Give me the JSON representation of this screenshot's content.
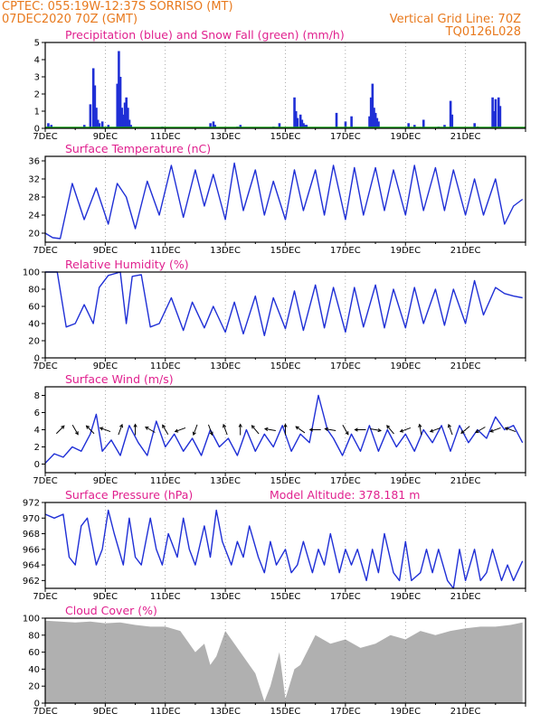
{
  "header": {
    "line1": "CPTEC:   055:19W-12:37S   SORRISO (MT)",
    "line2": "07DEC2020 70Z (GMT)",
    "grid_note": "Vertical Grid Line: 70Z",
    "code": "TQ0126L028"
  },
  "colors": {
    "header": "#e8791d",
    "panel_title": "#e0208e",
    "series": "#1f2fd6",
    "snow": "#11a011",
    "cloud": "#b0b0b0"
  },
  "chart_data": [
    {
      "type": "bar",
      "title": "Precipitation (blue) and Snow Fall (green) (mm/h)",
      "xlabel": "",
      "ylabel": "",
      "x_ticks": [
        "7DEC",
        "9DEC",
        "11DEC",
        "13DEC",
        "15DEC",
        "17DEC",
        "19DEC",
        "21DEC"
      ],
      "ylim": [
        0,
        5
      ],
      "y_ticks": [
        0,
        1,
        2,
        3,
        4,
        5
      ],
      "grid": "vertical dotted",
      "series": [
        {
          "name": "Precipitation",
          "x_days": [
            0.1,
            0.2,
            1.3,
            1.5,
            1.6,
            1.65,
            1.7,
            1.75,
            1.8,
            1.9,
            2.1,
            2.4,
            2.45,
            2.5,
            2.55,
            2.6,
            2.65,
            2.7,
            2.75,
            2.8,
            2.85,
            3.9,
            5.5,
            5.6,
            5.65,
            6.4,
            6.5,
            7.6,
            7.8,
            8.3,
            8.35,
            8.4,
            8.5,
            8.55,
            8.6,
            8.65,
            8.7,
            9.7,
            10.0,
            10.2,
            10.8,
            10.85,
            10.9,
            10.95,
            11.0,
            11.05,
            11.1,
            12.1,
            12.3,
            12.6,
            13.1,
            13.3,
            13.5,
            13.55,
            14.3,
            14.4,
            14.9,
            14.95,
            15.0,
            15.1,
            15.15
          ],
          "values": [
            0.3,
            0.2,
            0.2,
            1.4,
            3.5,
            2.5,
            1.2,
            0.5,
            0.3,
            0.4,
            0.2,
            2.6,
            4.5,
            3.0,
            1.2,
            0.8,
            1.5,
            1.8,
            1.2,
            0.5,
            0.2,
            0.1,
            0.3,
            0.4,
            0.2,
            0.1,
            0.2,
            0.1,
            0.3,
            1.8,
            1.0,
            0.6,
            0.8,
            0.5,
            0.3,
            0.2,
            0.2,
            0.9,
            0.4,
            0.7,
            0.7,
            1.8,
            2.6,
            1.2,
            0.9,
            0.6,
            0.4,
            0.3,
            0.2,
            0.5,
            0.1,
            0.2,
            1.6,
            0.8,
            0.3,
            0.1,
            1.8,
            1.0,
            1.7,
            1.8,
            1.3
          ]
        },
        {
          "name": "Snow Fall",
          "values": [
            0
          ]
        }
      ]
    },
    {
      "type": "line",
      "title": "Surface Temperature (nC)",
      "xlabel": "",
      "ylabel": "",
      "x_ticks": [
        "7DEC",
        "9DEC",
        "11DEC",
        "13DEC",
        "15DEC",
        "17DEC",
        "19DEC",
        "21DEC"
      ],
      "ylim": [
        18,
        37
      ],
      "y_ticks": [
        20,
        24,
        28,
        32,
        36
      ],
      "grid": "vertical dotted",
      "series": [
        {
          "x_days": [
            0,
            0.25,
            0.5,
            0.9,
            1.3,
            1.7,
            2.1,
            2.4,
            2.7,
            3.0,
            3.4,
            3.8,
            4.2,
            4.6,
            5.0,
            5.3,
            5.6,
            6.0,
            6.3,
            6.6,
            7.0,
            7.3,
            7.6,
            8.0,
            8.3,
            8.6,
            9.0,
            9.3,
            9.6,
            10.0,
            10.3,
            10.6,
            11.0,
            11.3,
            11.6,
            12.0,
            12.3,
            12.6,
            13.0,
            13.3,
            13.6,
            14.0,
            14.3,
            14.6,
            15.0,
            15.3,
            15.6,
            15.9
          ],
          "values": [
            20,
            19,
            18.8,
            31,
            23,
            30,
            22,
            31,
            28,
            21,
            31.5,
            24,
            35,
            23.5,
            34,
            26,
            33,
            23,
            35.5,
            25,
            34,
            24,
            31.5,
            23,
            34,
            25,
            34,
            24,
            35,
            23,
            34.5,
            24,
            34.5,
            25,
            34,
            24,
            35,
            25,
            34.5,
            25,
            34,
            24,
            32,
            24,
            32,
            22,
            26,
            27.5
          ]
        }
      ]
    },
    {
      "type": "line",
      "title": "Relative Humidity (%)",
      "xlabel": "",
      "ylabel": "",
      "x_ticks": [
        "7DEC",
        "9DEC",
        "11DEC",
        "13DEC",
        "15DEC",
        "17DEC",
        "19DEC",
        "21DEC"
      ],
      "ylim": [
        0,
        100
      ],
      "y_ticks": [
        0,
        20,
        40,
        60,
        80,
        100
      ],
      "grid": "vertical dotted",
      "series": [
        {
          "x_days": [
            0,
            0.4,
            0.7,
            1.0,
            1.3,
            1.6,
            1.8,
            2.1,
            2.5,
            2.7,
            2.9,
            3.2,
            3.5,
            3.8,
            4.2,
            4.6,
            4.9,
            5.3,
            5.6,
            6.0,
            6.3,
            6.6,
            7.0,
            7.3,
            7.6,
            8.0,
            8.3,
            8.6,
            9.0,
            9.3,
            9.6,
            10.0,
            10.3,
            10.6,
            11.0,
            11.3,
            11.6,
            12.0,
            12.3,
            12.6,
            13.0,
            13.3,
            13.6,
            14.0,
            14.3,
            14.6,
            15.0,
            15.3,
            15.6,
            15.9
          ],
          "values": [
            100,
            100,
            36,
            40,
            62,
            40,
            82,
            96,
            100,
            40,
            95,
            97,
            36,
            40,
            70,
            32,
            65,
            35,
            60,
            30,
            65,
            28,
            72,
            26,
            70,
            34,
            78,
            32,
            85,
            35,
            82,
            30,
            82,
            36,
            85,
            35,
            80,
            35,
            82,
            40,
            80,
            38,
            80,
            40,
            90,
            50,
            82,
            75,
            72,
            70
          ]
        }
      ]
    },
    {
      "type": "line",
      "title": "Surface Wind (m/s)",
      "xlabel": "",
      "ylabel": "",
      "x_ticks": [
        "7DEC",
        "9DEC",
        "11DEC",
        "13DEC",
        "15DEC",
        "17DEC",
        "19DEC",
        "21DEC"
      ],
      "ylim": [
        -1,
        9
      ],
      "y_ticks": [
        0,
        2,
        4,
        6,
        8
      ],
      "grid": "vertical dotted",
      "series": [
        {
          "x_days": [
            0,
            0.3,
            0.6,
            0.9,
            1.2,
            1.5,
            1.7,
            1.9,
            2.2,
            2.5,
            2.8,
            3.1,
            3.4,
            3.7,
            4.0,
            4.3,
            4.6,
            4.9,
            5.2,
            5.5,
            5.8,
            6.1,
            6.4,
            6.7,
            7.0,
            7.3,
            7.6,
            7.9,
            8.2,
            8.5,
            8.8,
            9.1,
            9.4,
            9.6,
            9.9,
            10.2,
            10.5,
            10.8,
            11.1,
            11.4,
            11.7,
            12.0,
            12.3,
            12.6,
            12.9,
            13.2,
            13.5,
            13.8,
            14.1,
            14.4,
            14.7,
            15.0,
            15.3,
            15.6,
            15.9
          ],
          "values": [
            0.1,
            1.2,
            0.8,
            2.0,
            1.5,
            3.5,
            5.8,
            1.5,
            2.8,
            1.0,
            4.5,
            2.5,
            1.0,
            5.0,
            2.0,
            3.5,
            1.5,
            3.0,
            1.0,
            4.0,
            2.0,
            3.0,
            1.0,
            4.0,
            1.5,
            3.5,
            2.0,
            4.5,
            1.5,
            3.5,
            2.5,
            8.0,
            4.0,
            3.0,
            1.0,
            3.5,
            1.5,
            4.5,
            1.5,
            4.0,
            2.0,
            3.5,
            1.5,
            4.0,
            2.5,
            4.5,
            1.5,
            4.5,
            2.5,
            4.0,
            3.0,
            5.5,
            4.0,
            4.5,
            2.5
          ]
        }
      ],
      "wind_arrow_days": [
        0.5,
        1.0,
        1.5,
        2.0,
        2.5,
        3.0,
        3.5,
        4.0,
        4.5,
        5.0,
        5.5,
        6.0,
        6.5,
        7.0,
        7.5,
        8.0,
        8.5,
        9.0,
        9.5,
        10.0,
        10.5,
        11.0,
        11.5,
        12.0,
        12.5,
        13.0,
        13.5,
        14.0,
        14.5,
        15.0,
        15.5
      ],
      "wind_arrow_directions_deg": [
        45,
        300,
        135,
        160,
        70,
        90,
        150,
        120,
        200,
        250,
        290,
        110,
        90,
        130,
        170,
        90,
        145,
        180,
        170,
        300,
        180,
        350,
        130,
        200,
        100,
        200,
        110,
        220,
        210,
        200,
        160
      ]
    },
    {
      "type": "line",
      "title": "Surface Pressure (hPa)",
      "annotation": "Model Altitude: 378.181 m",
      "xlabel": "",
      "ylabel": "",
      "x_ticks": [
        "7DEC",
        "9DEC",
        "11DEC",
        "13DEC",
        "15DEC",
        "17DEC",
        "19DEC",
        "21DEC"
      ],
      "ylim": [
        961,
        972
      ],
      "y_ticks": [
        962,
        964,
        966,
        968,
        970,
        972
      ],
      "grid": "vertical dotted",
      "series": [
        {
          "x_days": [
            0,
            0.3,
            0.6,
            0.8,
            1.0,
            1.2,
            1.4,
            1.7,
            1.9,
            2.1,
            2.3,
            2.6,
            2.8,
            3.0,
            3.2,
            3.5,
            3.7,
            3.9,
            4.1,
            4.4,
            4.6,
            4.8,
            5.0,
            5.3,
            5.5,
            5.7,
            5.9,
            6.2,
            6.4,
            6.6,
            6.8,
            7.1,
            7.3,
            7.5,
            7.7,
            8.0,
            8.2,
            8.4,
            8.6,
            8.9,
            9.1,
            9.3,
            9.5,
            9.8,
            10.0,
            10.2,
            10.4,
            10.7,
            10.9,
            11.1,
            11.3,
            11.6,
            11.8,
            12.0,
            12.2,
            12.5,
            12.7,
            12.9,
            13.1,
            13.4,
            13.6,
            13.8,
            14.0,
            14.3,
            14.5,
            14.7,
            14.9,
            15.2,
            15.4,
            15.6,
            15.9
          ],
          "values": [
            970.5,
            970,
            970.5,
            965,
            964,
            969,
            970,
            964,
            966,
            971,
            968,
            964,
            970,
            965,
            964,
            970,
            966,
            964,
            968,
            965,
            970,
            966,
            964,
            969,
            965,
            971,
            967,
            964,
            967,
            965,
            969,
            965,
            963,
            967,
            964,
            966,
            963,
            964,
            967,
            963,
            966,
            964,
            968,
            963,
            966,
            964,
            966,
            962,
            966,
            963,
            968,
            963,
            962,
            967,
            962,
            963,
            966,
            963,
            966,
            962,
            961,
            966,
            962,
            966,
            962,
            963,
            966,
            962,
            964,
            962,
            964.5
          ]
        }
      ]
    },
    {
      "type": "bar",
      "title": "Cloud Cover (%)",
      "xlabel": "",
      "ylabel": "",
      "x_ticks": [
        "7DEC",
        "9DEC",
        "11DEC",
        "13DEC",
        "15DEC",
        "17DEC",
        "19DEC",
        "21DEC"
      ],
      "ylim": [
        0,
        100
      ],
      "y_ticks": [
        0,
        20,
        40,
        60,
        80,
        100
      ],
      "grid": "vertical dotted",
      "series": [
        {
          "x_days": [
            0,
            0.5,
            1.0,
            1.5,
            2.0,
            2.5,
            3.0,
            3.5,
            4.0,
            4.5,
            5.0,
            5.3,
            5.5,
            5.7,
            6.0,
            6.5,
            7.0,
            7.3,
            7.5,
            7.8,
            8.0,
            8.3,
            8.5,
            9.0,
            9.5,
            10.0,
            10.5,
            11.0,
            11.5,
            12.0,
            12.5,
            13.0,
            13.5,
            14.0,
            14.5,
            15.0,
            15.5,
            15.9
          ],
          "values": [
            97,
            96,
            95,
            96,
            94,
            95,
            92,
            90,
            90,
            85,
            60,
            70,
            45,
            55,
            85,
            60,
            35,
            2,
            20,
            60,
            5,
            40,
            45,
            80,
            70,
            75,
            65,
            70,
            80,
            75,
            85,
            80,
            85,
            88,
            90,
            90,
            92,
            95
          ]
        }
      ]
    }
  ]
}
